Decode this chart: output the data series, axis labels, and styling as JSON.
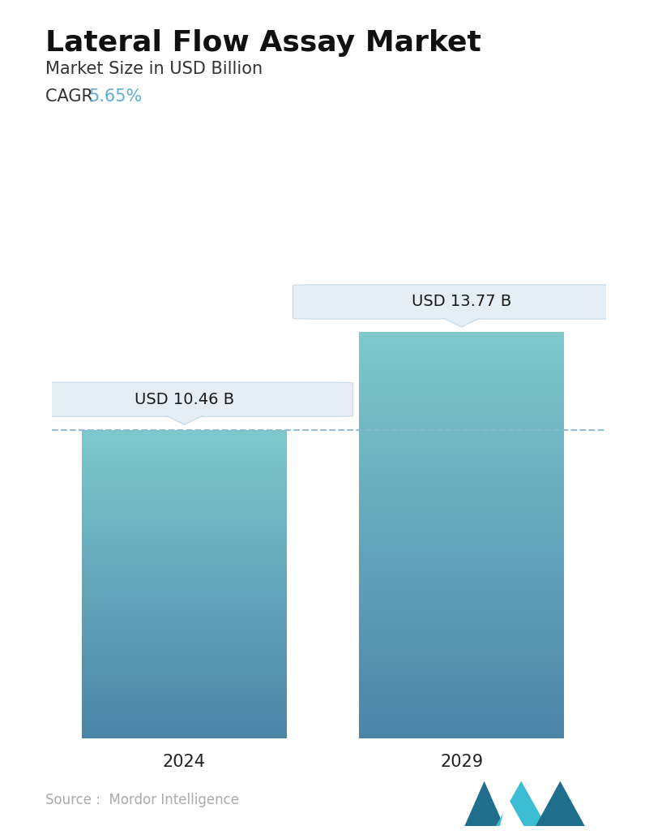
{
  "title": "Lateral Flow Assay Market",
  "subtitle": "Market Size in USD Billion",
  "cagr_label": "CAGR ",
  "cagr_value": "5.65%",
  "cagr_color": "#5bafd6",
  "categories": [
    "2024",
    "2029"
  ],
  "values": [
    10.46,
    13.77
  ],
  "bar_labels": [
    "USD 10.46 B",
    "USD 13.77 B"
  ],
  "bar_color_top": "#7ec8cd",
  "bar_color_bottom": "#4a85a8",
  "dashed_line_color": "#89b8cc",
  "dashed_line_value": 10.46,
  "source_text": "Source :  Mordor Intelligence",
  "source_color": "#aaaaaa",
  "background_color": "#ffffff",
  "ylim": [
    0,
    16.5
  ],
  "title_fontsize": 26,
  "subtitle_fontsize": 15,
  "cagr_fontsize": 15,
  "tick_fontsize": 15,
  "label_fontsize": 14,
  "source_fontsize": 12
}
